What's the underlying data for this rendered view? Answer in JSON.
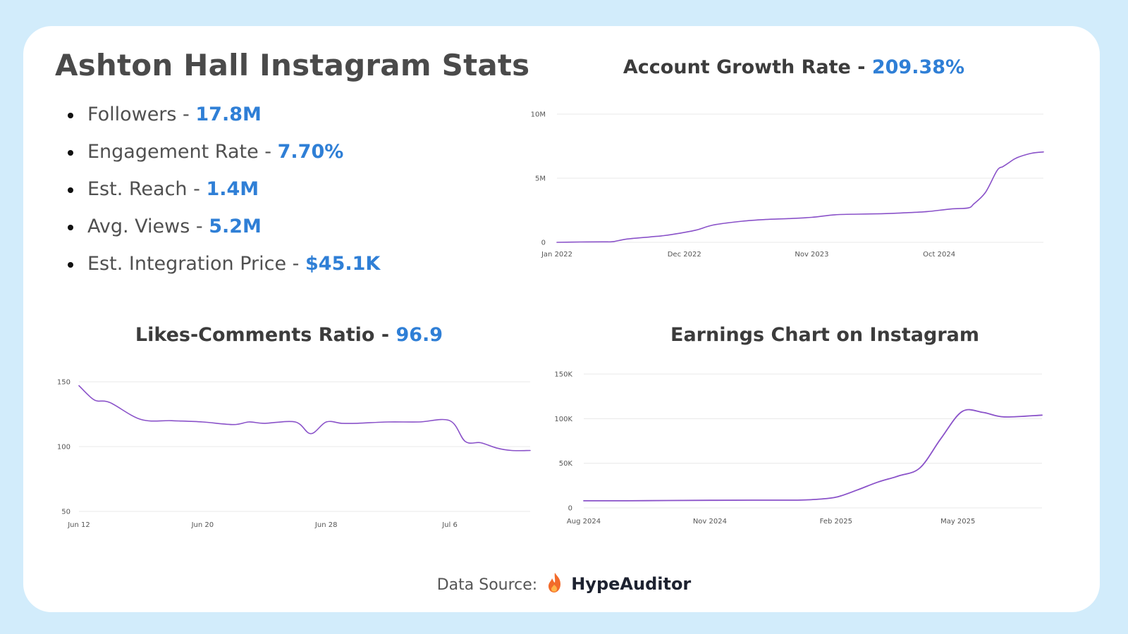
{
  "title": "Ashton Hall Instagram Stats",
  "stats": [
    {
      "label": "Followers - ",
      "value": "17.8M"
    },
    {
      "label": "Engagement Rate - ",
      "value": "7.70%"
    },
    {
      "label": "Est. Reach - ",
      "value": "1.4M"
    },
    {
      "label": "Avg. Views - ",
      "value": "5.2M"
    },
    {
      "label": "Est. Integration Price - ",
      "value": "$45.1K"
    }
  ],
  "source": {
    "label": "Data Source:",
    "brand": "HypeAuditor"
  },
  "colors": {
    "accent": "#2f7fd6",
    "line": "#8a52c9",
    "grid": "#e8e8e8",
    "background": "#d2ecfb"
  },
  "chart_data": [
    {
      "type": "line",
      "title": "Account Growth Rate - ",
      "title_value": "209.38%",
      "xlabel": "",
      "ylabel": "",
      "x_ticks": [
        {
          "label": "Jan 2022",
          "t": 0
        },
        {
          "label": "Dec 2022",
          "t": 11
        },
        {
          "label": "Nov 2023",
          "t": 22
        },
        {
          "label": "Oct 2024",
          "t": 33
        }
      ],
      "xlim": [
        0,
        42
      ],
      "y_ticks": [
        {
          "label": "0",
          "v": 0
        },
        {
          "label": "5M",
          "v": 5000000
        },
        {
          "label": "10M",
          "v": 10000000
        }
      ],
      "ylim": [
        0,
        10000000
      ],
      "grid": true,
      "series": [
        {
          "x": [
            0,
            2,
            4,
            4.8,
            6,
            8,
            9,
            10,
            12,
            13.5,
            16,
            18,
            20,
            22,
            24,
            26,
            28,
            30,
            32,
            34,
            35.5,
            36,
            37,
            38,
            38.5,
            39,
            39.5,
            40,
            41,
            42
          ],
          "y": [
            0,
            30000,
            40000,
            50000,
            250000,
            420000,
            500000,
            620000,
            950000,
            1350000,
            1650000,
            1780000,
            1850000,
            1950000,
            2150000,
            2200000,
            2230000,
            2300000,
            2400000,
            2600000,
            2680000,
            3000000,
            3900000,
            5600000,
            5900000,
            6200000,
            6500000,
            6700000,
            6950000,
            7050000
          ]
        }
      ]
    },
    {
      "type": "line",
      "title": "Likes-Comments Ratio - ",
      "title_value": "96.9",
      "xlabel": "",
      "ylabel": "",
      "x_ticks": [
        {
          "label": "Jun 12",
          "t": 0
        },
        {
          "label": "Jun 20",
          "t": 8
        },
        {
          "label": "Jun 28",
          "t": 16
        },
        {
          "label": "Jul 6",
          "t": 24
        }
      ],
      "xlim": [
        0,
        29.2
      ],
      "y_ticks": [
        {
          "label": "50",
          "v": 50
        },
        {
          "label": "100",
          "v": 100
        },
        {
          "label": "150",
          "v": 150
        }
      ],
      "ylim": [
        50,
        150
      ],
      "grid": true,
      "series": [
        {
          "x": [
            0,
            1,
            2,
            4,
            6,
            8,
            10,
            11,
            12,
            14,
            15,
            16,
            17,
            18,
            20,
            22,
            24,
            25,
            26,
            27,
            28,
            29.2
          ],
          "y": [
            147,
            136,
            134,
            121,
            120,
            119,
            117,
            119,
            118,
            119,
            110,
            119,
            118,
            118,
            119,
            119,
            120,
            104,
            103,
            99,
            97,
            97
          ]
        }
      ]
    },
    {
      "type": "line",
      "title": "Earnings Chart on Instagram",
      "title_value": "",
      "xlabel": "",
      "ylabel": "",
      "x_ticks": [
        {
          "label": "Aug 2024",
          "t": 0
        },
        {
          "label": "Nov 2024",
          "t": 3
        },
        {
          "label": "Feb 2025",
          "t": 6
        },
        {
          "label": "May 2025",
          "t": 8.9
        }
      ],
      "xlim": [
        0,
        10.9
      ],
      "y_ticks": [
        {
          "label": "0",
          "v": 0
        },
        {
          "label": "50K",
          "v": 50000
        },
        {
          "label": "100K",
          "v": 100000
        },
        {
          "label": "150K",
          "v": 150000
        }
      ],
      "ylim": [
        0,
        150000
      ],
      "grid": true,
      "series": [
        {
          "x": [
            0,
            1,
            2,
            3,
            4,
            5,
            5.5,
            6,
            6.5,
            7,
            7.5,
            8,
            8.5,
            9,
            9.5,
            10,
            10.9
          ],
          "y": [
            8000,
            8000,
            8300,
            8500,
            8700,
            8700,
            9500,
            12000,
            20000,
            29000,
            36000,
            45000,
            78000,
            108000,
            107000,
            102000,
            104000
          ]
        }
      ]
    }
  ]
}
